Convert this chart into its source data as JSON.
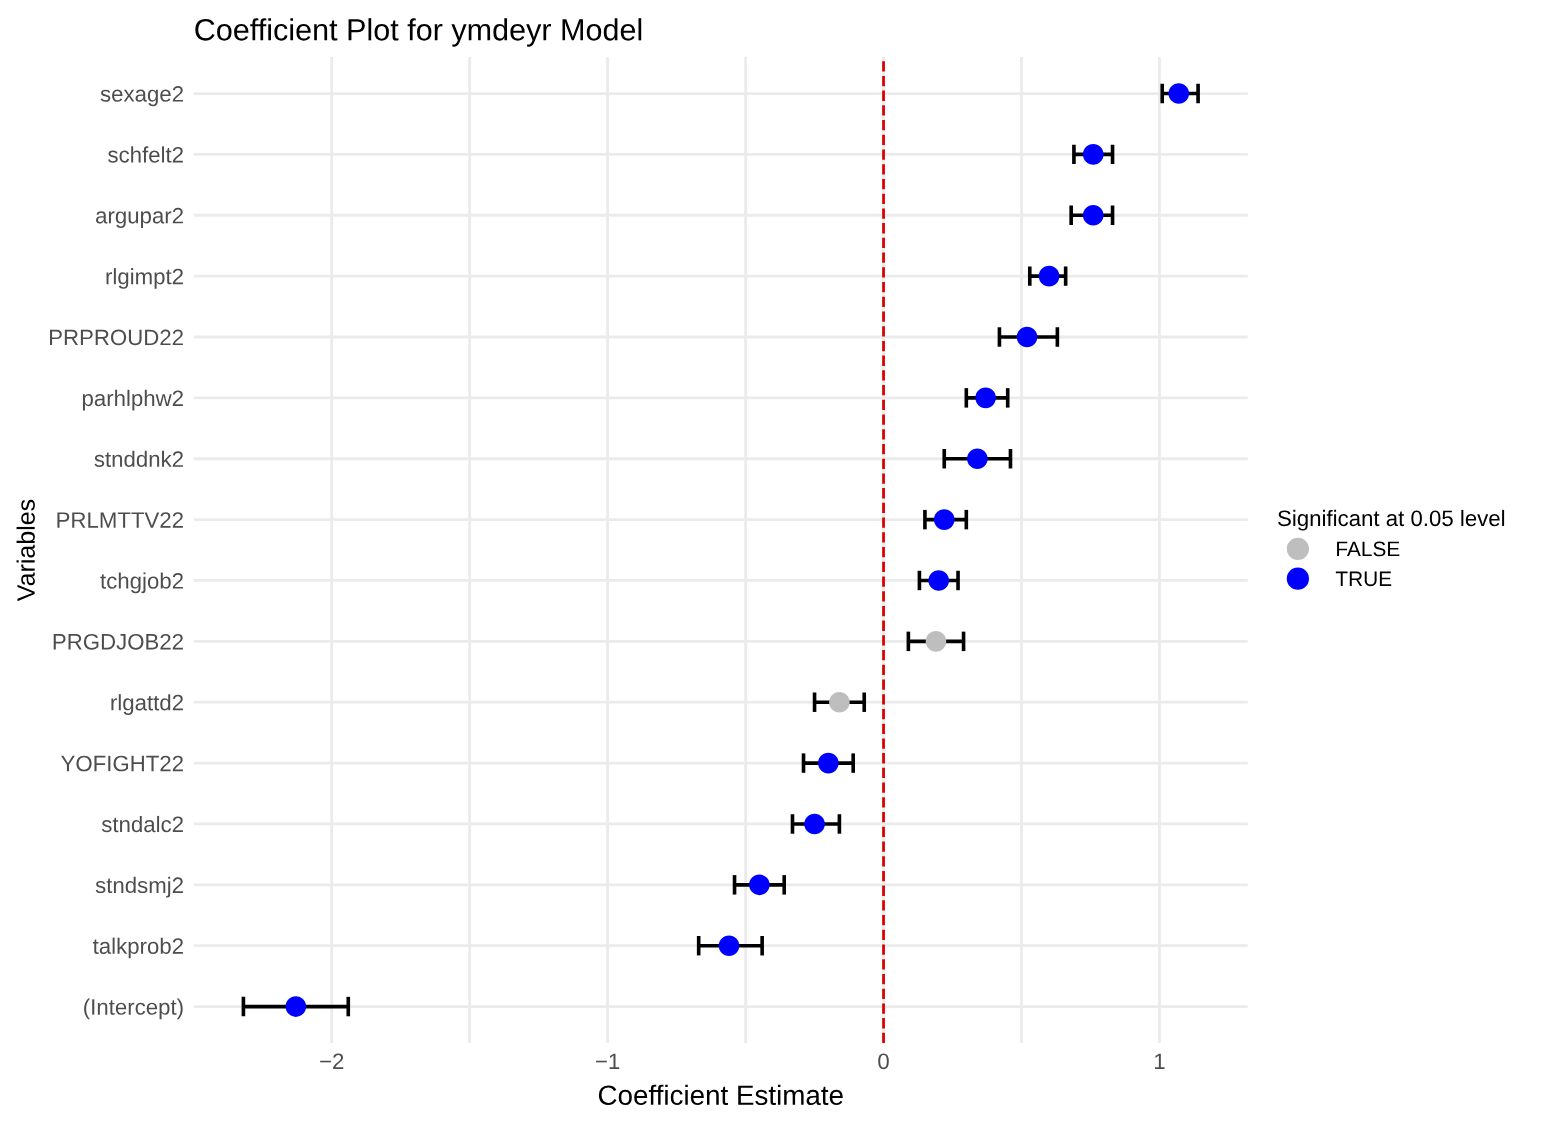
{
  "chart_data": {
    "type": "scatter",
    "orientation": "horizontal",
    "title": "Coefficient Plot for ymdeyr Model",
    "xlabel": "Coefficient Estimate",
    "ylabel": "Variables",
    "legend_title": "Significant at 0.05 level",
    "categories": [
      "sexage2",
      "schfelt2",
      "argupar2",
      "rlgimpt2",
      "PRPROUD22",
      "parhlphw2",
      "stnddnk2",
      "PRLMTTV22",
      "tchgjob2",
      "PRGDJOB22",
      "rlgattd2",
      "YOFIGHT22",
      "stndalc2",
      "stndsmj2",
      "talkprob2",
      "(Intercept)"
    ],
    "series": [
      {
        "name": "FALSE",
        "color": "#bebebe",
        "values": [
          null,
          null,
          null,
          null,
          null,
          null,
          null,
          null,
          null,
          0.19,
          -0.16,
          null,
          null,
          null,
          null,
          null
        ],
        "errors": [
          null,
          null,
          null,
          null,
          null,
          null,
          null,
          null,
          null,
          [
            0.09,
            0.29
          ],
          [
            -0.25,
            -0.07
          ],
          null,
          null,
          null,
          null,
          null
        ]
      },
      {
        "name": "TRUE",
        "color": "#0000ff",
        "values": [
          1.07,
          0.76,
          0.76,
          0.6,
          0.52,
          0.37,
          0.34,
          0.22,
          0.2,
          null,
          null,
          -0.2,
          -0.25,
          -0.45,
          -0.56,
          -2.13
        ],
        "errors": [
          [
            1.01,
            1.14
          ],
          [
            0.69,
            0.83
          ],
          [
            0.68,
            0.83
          ],
          [
            0.53,
            0.66
          ],
          [
            0.42,
            0.63
          ],
          [
            0.3,
            0.45
          ],
          [
            0.22,
            0.46
          ],
          [
            0.15,
            0.3
          ],
          [
            0.13,
            0.27
          ],
          null,
          null,
          [
            -0.29,
            -0.11
          ],
          [
            -0.33,
            -0.16
          ],
          [
            -0.54,
            -0.36
          ],
          [
            -0.67,
            -0.44
          ],
          [
            -2.32,
            -1.94
          ]
        ]
      }
    ],
    "xlim": [
      -2.5,
      1.32
    ],
    "xticks": [
      -2,
      {
        "value": -1.5,
        "label": null
      },
      -1,
      {
        "value": -0.5,
        "label": null
      },
      0,
      {
        "value": 0.5,
        "label": null
      },
      1
    ],
    "ref_lines": [
      {
        "axis": "x",
        "value": 0,
        "color": "#dd0000",
        "line_style": "dashed"
      }
    ],
    "grid": true,
    "legend": "right",
    "marker": "circle"
  }
}
